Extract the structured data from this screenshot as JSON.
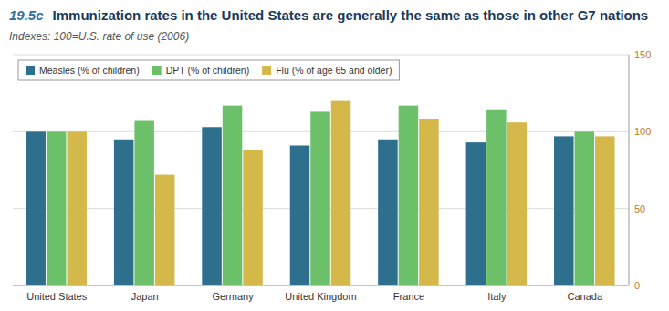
{
  "chart_data": {
    "type": "bar",
    "annotations": [
      "19.5c"
    ],
    "title": "Immunization rates in the United States are generally the same as those in other G7 nations",
    "subtitle": "Indexes:  100=U.S. rate of use (2006)",
    "categories": [
      "United States",
      "Japan",
      "Germany",
      "United Kingdom",
      "France",
      "Italy",
      "Canada"
    ],
    "series": [
      {
        "name": "Measles (% of children)",
        "color": "#2e6f8e",
        "values": [
          100,
          95,
          103,
          91,
          95,
          93,
          97
        ]
      },
      {
        "name": "DPT (% of children)",
        "color": "#6dc06a",
        "values": [
          100,
          107,
          117,
          113,
          117,
          114,
          100
        ]
      },
      {
        "name": "Flu (% of age 65 and older)",
        "color": "#d4b84a",
        "values": [
          100,
          72,
          88,
          120,
          108,
          106,
          97
        ]
      }
    ],
    "ylim": [
      0,
      150
    ],
    "yticks": [
      0,
      50,
      100,
      150
    ],
    "grid": true,
    "legend": "top-left"
  }
}
